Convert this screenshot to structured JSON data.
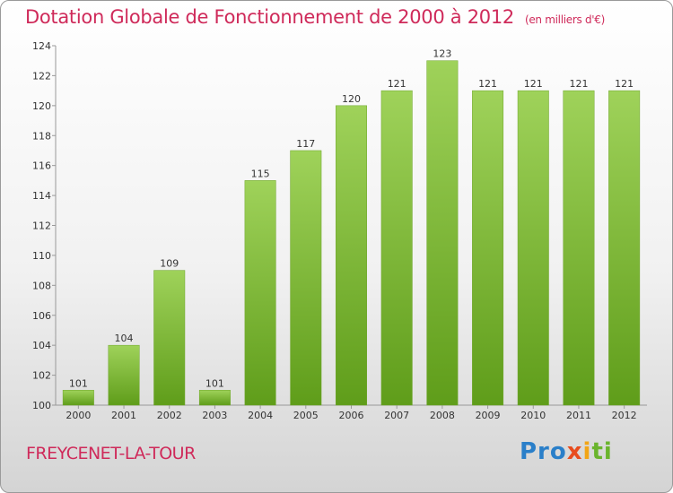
{
  "header": {
    "title": "Dotation Globale de Fonctionnement de 2000 à 2012",
    "subtitle": "(en milliers d'€)"
  },
  "footer": {
    "commune": "FREYCENET-LA-TOUR",
    "logo": [
      "Pro",
      "x",
      "i",
      "ti"
    ]
  },
  "colors": {
    "bar_light": "#9fd25a",
    "bar_dark": "#5f9d1a",
    "title": "#cf2a5a"
  },
  "chart_data": {
    "type": "bar",
    "categories": [
      "2000",
      "2001",
      "2002",
      "2003",
      "2004",
      "2005",
      "2006",
      "2007",
      "2008",
      "2009",
      "2010",
      "2011",
      "2012"
    ],
    "values": [
      101,
      104,
      109,
      101,
      115,
      117,
      120,
      121,
      123,
      121,
      121,
      121,
      121
    ],
    "title": "Dotation Globale de Fonctionnement de 2000 à 2012",
    "xlabel": "",
    "ylabel": "",
    "ylim": [
      100,
      124
    ],
    "yticks": [
      100,
      102,
      104,
      106,
      108,
      110,
      112,
      114,
      116,
      118,
      120,
      122,
      124
    ],
    "grid": false,
    "legend": "none"
  }
}
